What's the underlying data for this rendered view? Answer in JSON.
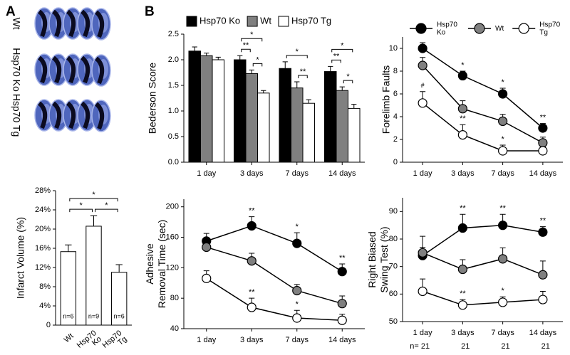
{
  "panel_labels": [
    "A",
    "B"
  ],
  "brain_labels": [
    "Wt",
    "Hsp70 Ko",
    "Hsp70 Tg"
  ],
  "chart_data": [
    {
      "type": "bar",
      "categories": [
        "Wt",
        "Hsp70 Ko",
        "Hsp70 Tg"
      ],
      "values": [
        15.3,
        20.6,
        11
      ],
      "errors": [
        1.4,
        2.2,
        1.6
      ],
      "color": "#ffffff",
      "value_notes": [
        "n=6",
        "n=9",
        "n=6"
      ],
      "ylabel": [
        "Infarct Volume (%)"
      ],
      "ylim": [
        0,
        28
      ],
      "yticks": [
        0,
        {
          "value": 4,
          "label": "4%"
        },
        {
          "value": 8,
          "label": "8%"
        },
        {
          "value": 12,
          "label": "12%"
        },
        {
          "value": 16,
          "label": "16%"
        },
        {
          "value": 20,
          "label": "20%"
        },
        {
          "value": 24,
          "label": "24%"
        },
        {
          "value": 28,
          "label": "28%"
        }
      ],
      "comparisons": [
        {
          "between": [
            "Wt",
            "Hsp70 Ko"
          ],
          "label": "*"
        },
        {
          "between": [
            "Hsp70 Ko",
            "Hsp70 Tg"
          ],
          "label": "*"
        },
        {
          "between": [
            "Wt",
            "Hsp70 Tg"
          ],
          "label": "*"
        }
      ]
    },
    {
      "type": "bar",
      "categories": [
        "1 day",
        "3 days",
        "7 days",
        "14 days"
      ],
      "legend": "top",
      "series": [
        {
          "name": "Hsp70 Ko",
          "color": "#000000",
          "values": [
            2.17,
            2.0,
            1.83,
            1.77
          ],
          "errors": [
            0.08,
            0.08,
            0.13,
            0.1
          ]
        },
        {
          "name": "Wt",
          "color": "#808080",
          "values": [
            2.08,
            1.73,
            1.45,
            1.4
          ],
          "errors": [
            0.05,
            0.07,
            0.12,
            0.07
          ]
        },
        {
          "name": "Hsp70 Tg",
          "color": "#ffffff",
          "values": [
            2.0,
            1.35,
            1.15,
            1.05
          ],
          "errors": [
            0.05,
            0.05,
            0.07,
            0.08
          ]
        }
      ],
      "ylabel": [
        "Bederson Score"
      ],
      "ylim": [
        0,
        2.5
      ],
      "yticks": [
        {
          "value": 0,
          "label": "0.0"
        },
        0.5,
        {
          "value": 1,
          "label": "1.0"
        },
        1.5,
        {
          "value": 2,
          "label": "2.0"
        },
        2.5
      ],
      "comparisons": [
        {
          "category": "3 days",
          "between": [
            "Hsp70 Ko",
            "Wt"
          ],
          "label": "**"
        },
        {
          "category": "3 days",
          "between": [
            "Wt",
            "Hsp70 Tg"
          ],
          "label": "*"
        },
        {
          "category": "3 days",
          "between": [
            "Hsp70 Ko",
            "Hsp70 Tg"
          ],
          "label": "*"
        },
        {
          "category": "7 days",
          "between": [
            "Wt",
            "Hsp70 Tg"
          ],
          "label": "**"
        },
        {
          "category": "7 days",
          "between": [
            "Hsp70 Ko",
            "Hsp70 Tg"
          ],
          "label": "*"
        },
        {
          "category": "14 days",
          "between": [
            "Hsp70 Ko",
            "Wt"
          ],
          "label": "**"
        },
        {
          "category": "14 days",
          "between": [
            "Wt",
            "Hsp70 Tg"
          ],
          "label": "*"
        },
        {
          "category": "14 days",
          "between": [
            "Hsp70 Ko",
            "Hsp70 Tg"
          ],
          "label": "*"
        }
      ]
    },
    {
      "type": "line",
      "categories": [
        "1 day",
        "3 days",
        "7 days",
        "14 days"
      ],
      "legend": "top",
      "series": [
        {
          "name": "Hsp70 Ko",
          "color": "#000000",
          "values": [
            10,
            7.6,
            6,
            3
          ],
          "errors": [
            0.5,
            0.4,
            0.5,
            0.4
          ],
          "significance": [
            null,
            "*",
            "*",
            "**"
          ]
        },
        {
          "name": "Wt",
          "color": "#808080",
          "values": [
            8.5,
            4.7,
            3.6,
            1.7
          ],
          "errors": [
            0.7,
            0.7,
            0.6,
            0.5
          ]
        },
        {
          "name": "Hsp70 Tg",
          "color": "#ffffff",
          "values": [
            5.2,
            2.4,
            1,
            1
          ],
          "errors": [
            1.0,
            0.9,
            0.5,
            0.3
          ],
          "significance": [
            "#",
            "**",
            "*",
            null
          ]
        }
      ],
      "ylabel": [
        "Forelimb Faults"
      ],
      "ylim": [
        0,
        11
      ],
      "yticks": [
        0,
        2,
        4,
        6,
        8,
        10
      ]
    },
    {
      "type": "line",
      "categories": [
        "1 day",
        "3 days",
        "7 days",
        "14 days"
      ],
      "series": [
        {
          "name": "Hsp70 Ko",
          "color": "#000000",
          "values": [
            155,
            175,
            152,
            115
          ],
          "errors": [
            10,
            12,
            14,
            10
          ],
          "significance": [
            null,
            "**",
            "*",
            "**"
          ]
        },
        {
          "name": "Wt",
          "color": "#808080",
          "values": [
            147,
            129,
            90,
            73
          ],
          "errors": [
            10,
            10,
            8,
            10
          ]
        },
        {
          "name": "Hsp70 Tg",
          "color": "#ffffff",
          "values": [
            106,
            68,
            54,
            51
          ],
          "errors": [
            10,
            12,
            10,
            8
          ],
          "significance": [
            null,
            "**",
            "*",
            null
          ]
        }
      ],
      "ylabel": [
        "Adhesive",
        "Removal Time (sec)"
      ],
      "ylim": [
        40,
        210
      ],
      "yticks": [
        40,
        80,
        120,
        160,
        200
      ]
    },
    {
      "type": "line",
      "categories": [
        "1 day",
        "3 days",
        "7 days",
        "14 days"
      ],
      "series": [
        {
          "name": "Hsp70 Ko",
          "color": "#000000",
          "values": [
            74,
            84,
            85,
            82.5
          ],
          "errors": [
            3,
            5,
            4,
            2
          ],
          "significance": [
            null,
            "**",
            "**",
            "**"
          ]
        },
        {
          "name": "Wt",
          "color": "#808080",
          "values": [
            75,
            69,
            72.8,
            67
          ],
          "errors": [
            6,
            3.5,
            4,
            5
          ]
        },
        {
          "name": "Hsp70 Tg",
          "color": "#ffffff",
          "values": [
            61,
            56,
            57,
            58
          ],
          "errors": [
            4.5,
            2,
            2,
            3
          ],
          "significance": [
            null,
            "**",
            "*",
            null
          ]
        }
      ],
      "ylabel": [
        "Right Biased",
        "Swing Test (%)"
      ],
      "ylim": [
        50,
        95
      ],
      "yticks": [
        50,
        60,
        70,
        80,
        90
      ],
      "n_labels": [
        "n= 21",
        "21",
        "21",
        "21"
      ]
    }
  ]
}
